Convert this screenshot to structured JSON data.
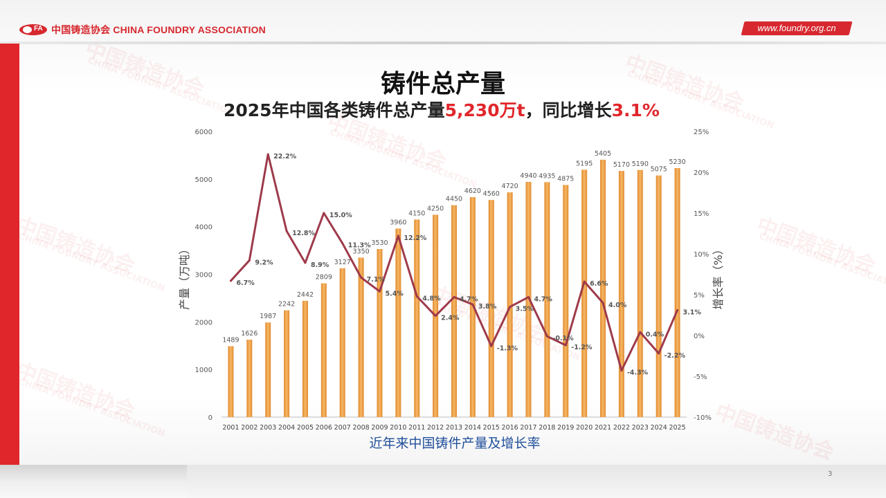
{
  "header": {
    "logo_abbr": "FA",
    "logo_text": "中国铸造协会 CHINA FOUNDRY ASSOCIATION",
    "website": "www.foundry.org.cn"
  },
  "watermark": [
    "中国铸造协会",
    "CHINA FOUNDRY ASSOCIATION"
  ],
  "slide": {
    "title": "铸件总产量",
    "subtitle_prefix": "2025年中国各类铸件总产量",
    "subtitle_value": "5,230万t",
    "subtitle_middle": "，同比增长",
    "subtitle_growth": "3.1%",
    "caption": "近年来中国铸件产量及增长率",
    "page_number": "3"
  },
  "colors": {
    "accent": "#e0262b",
    "bar": "#f0a44f",
    "line": "#9e3a4a",
    "caption": "#1f4e9a"
  },
  "chart_data": {
    "type": "bar+line",
    "categories": [
      "2001",
      "2002",
      "2003",
      "2004",
      "2005",
      "2006",
      "2007",
      "2008",
      "2009",
      "2010",
      "2011",
      "2012",
      "2013",
      "2014",
      "2015",
      "2016",
      "2017",
      "2018",
      "2019",
      "2020",
      "2021",
      "2022",
      "2023",
      "2024",
      "2025"
    ],
    "series": [
      {
        "type": "bar",
        "axis": "left",
        "values": [
          1489,
          1626,
          1987,
          2242,
          2442,
          2809,
          3127,
          3350,
          3530,
          3960,
          4150,
          4250,
          4450,
          4620,
          4560,
          4720,
          4940,
          4935,
          4875,
          5195,
          5405,
          5170,
          5190,
          5075,
          5230
        ],
        "labels": [
          "1489",
          "1626",
          "1987",
          "2242",
          "2442",
          "2809",
          "3127",
          "3350",
          "3530",
          "3960",
          "4150",
          "4250",
          "4450",
          "4620",
          "4560",
          "4720",
          "4940",
          "4935",
          "4875",
          "5195",
          "5405",
          "5170",
          "5190",
          "5075",
          "5230"
        ]
      },
      {
        "type": "line",
        "axis": "right",
        "values": [
          6.7,
          9.2,
          22.2,
          12.8,
          8.9,
          15.0,
          11.3,
          7.1,
          5.4,
          12.2,
          4.8,
          2.4,
          4.7,
          3.8,
          -1.3,
          3.5,
          4.7,
          -0.1,
          -1.2,
          6.6,
          4.0,
          -4.3,
          0.4,
          -2.2,
          3.1
        ],
        "labels": [
          "6.7%",
          "9.2%",
          "22.2%",
          "12.8%",
          "8.9%",
          "15.0%",
          "11.3%",
          "7.1%",
          "5.4%",
          "12.2%",
          "4.8%",
          "2.4%",
          "4.7%",
          "3.8%",
          "-1.3%",
          "3.5%",
          "4.7%",
          "-0.1%",
          "-1.2%",
          "6.6%",
          "4.0%",
          "-4.3%",
          "0.4%",
          "-2.2%",
          "3.1%"
        ]
      }
    ],
    "ylabel_left": "产量（万吨）",
    "ylabel_right": "增长率（%）",
    "ylim_left": [
      0,
      6000
    ],
    "ylim_right": [
      -10,
      25
    ],
    "left_ticks": [
      "0",
      "1000",
      "2000",
      "3000",
      "4000",
      "5000",
      "6000"
    ],
    "right_ticks": [
      "-10%",
      "-5%",
      "0%",
      "5%",
      "10%",
      "15%",
      "20%",
      "25%"
    ],
    "grid": false
  }
}
